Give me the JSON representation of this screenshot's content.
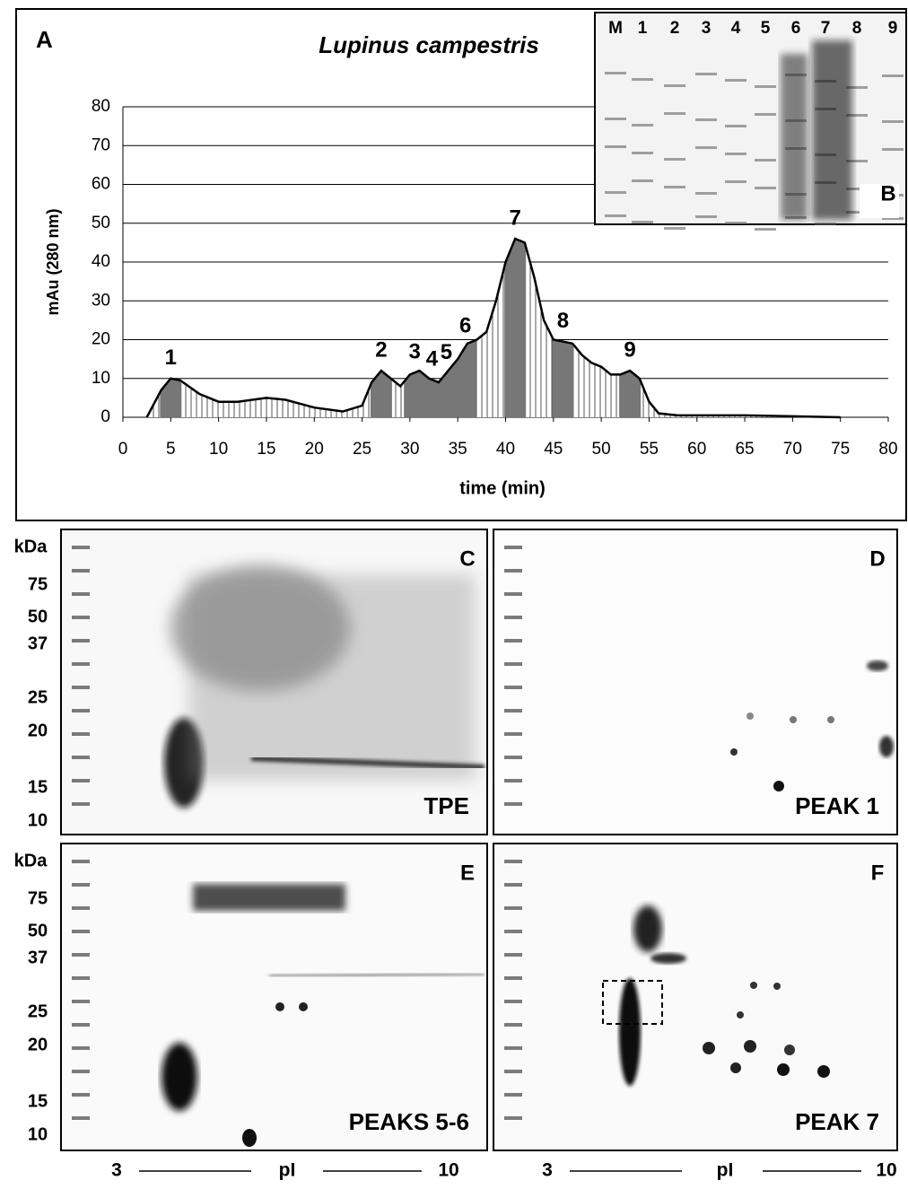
{
  "chart_data": {
    "type": "line",
    "panel": "A",
    "title": "Lupinus campestris",
    "x_label": "time (min)",
    "y_label": "mAu (280 nm)",
    "x": [
      2.5,
      4,
      5,
      6,
      8,
      10,
      12,
      15,
      17,
      20,
      23,
      25,
      26,
      27,
      28,
      29,
      30,
      31,
      32,
      33,
      34,
      35,
      36,
      37,
      38,
      39,
      40,
      41,
      42,
      43,
      44,
      45,
      46,
      47,
      48,
      49,
      50,
      51,
      52,
      53,
      54,
      55,
      56,
      58,
      65,
      75
    ],
    "values": [
      0,
      7,
      10,
      9.5,
      6,
      4,
      4,
      5,
      4.5,
      2.5,
      1.5,
      3,
      9,
      12,
      10,
      8,
      11,
      12,
      10,
      9,
      12,
      15,
      19,
      20,
      22,
      30,
      40,
      46,
      45,
      36,
      25,
      20,
      19.5,
      19,
      16,
      14,
      13,
      11,
      11,
      12,
      10,
      4,
      1,
      0.5,
      0.5,
      0
    ],
    "color": "#000000",
    "xlim": [
      0,
      80
    ],
    "xticks": [
      0,
      5,
      10,
      15,
      20,
      25,
      30,
      35,
      40,
      45,
      50,
      55,
      60,
      65,
      70,
      75,
      80
    ],
    "ylim": [
      0,
      80
    ],
    "yticks": [
      0,
      10,
      20,
      30,
      40,
      50,
      60,
      70,
      80
    ],
    "grid": true,
    "peaks": [
      {
        "label": "1",
        "time": 5
      },
      {
        "label": "2",
        "time": 27
      },
      {
        "label": "3",
        "time": 30.5
      },
      {
        "label": "4",
        "time": 32.3
      },
      {
        "label": "5",
        "time": 33.8
      },
      {
        "label": "6",
        "time": 35.8
      },
      {
        "label": "7",
        "time": 41
      },
      {
        "label": "8",
        "time": 46
      },
      {
        "label": "9",
        "time": 53
      }
    ]
  },
  "inset": {
    "panel": "B",
    "lanes": [
      "M",
      "1",
      "2",
      "3",
      "4",
      "5",
      "6",
      "7",
      "8",
      "9"
    ]
  },
  "gels": [
    {
      "panel": "C",
      "label": "TPE"
    },
    {
      "panel": "D",
      "label": "PEAK 1"
    },
    {
      "panel": "E",
      "label": "PEAKS 5-6"
    },
    {
      "panel": "F",
      "label": "PEAK 7"
    }
  ],
  "mw_axis": {
    "unit": "kDa",
    "ticks": [
      "75",
      "50",
      "37",
      "25",
      "20",
      "15",
      "10"
    ]
  },
  "pi_axis": {
    "label": "pI",
    "start": "3",
    "end": "10"
  }
}
